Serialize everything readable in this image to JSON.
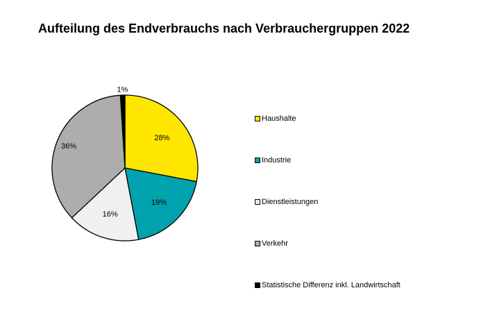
{
  "chart_data": {
    "type": "pie",
    "title": "Aufteilung des Endverbrauchs nach Verbrauchergruppen 2022",
    "legend_position": "right",
    "slices": [
      {
        "name": "Haushalte",
        "value": 28,
        "label": "28%",
        "color": "#FFE600"
      },
      {
        "name": "Industrie",
        "value": 19,
        "label": "19%",
        "color": "#00A3AD"
      },
      {
        "name": "Dienstleistungen",
        "value": 16,
        "label": "16%",
        "color": "#F0F0F0"
      },
      {
        "name": "Verkehr",
        "value": 36,
        "label": "36%",
        "color": "#ADADAD"
      },
      {
        "name": "Statistische Differenz inkl. Landwirtschaft",
        "value": 1,
        "label": "1%",
        "color": "#000000"
      }
    ]
  }
}
